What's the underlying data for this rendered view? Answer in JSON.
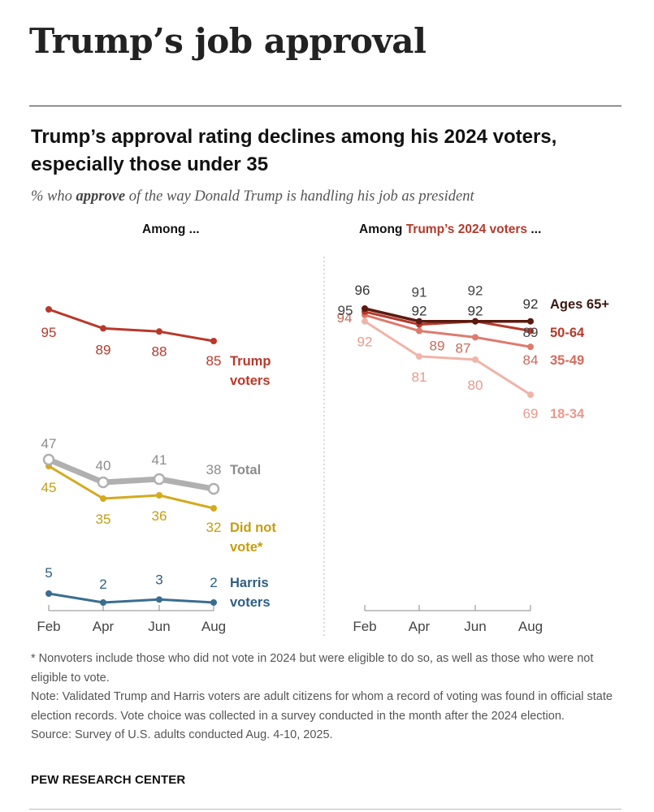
{
  "page": {
    "heading": "Trump’s job approval"
  },
  "chart_data": {
    "type": "line",
    "title": "Trump’s approval rating declines among his 2024 voters, especially those under 35",
    "subtitle_prefix": "% who ",
    "subtitle_emphasis": "approve",
    "subtitle_suffix": " of the way Donald Trump is handling his job as president",
    "categories": [
      "Feb",
      "Apr",
      "Jun",
      "Aug"
    ],
    "panels": [
      {
        "heading": "Among ...",
        "heading_accent": "",
        "ylim": [
          0,
          100
        ],
        "series": [
          {
            "key": "trump",
            "name": "Trump voters",
            "label_lines": [
              "Trump",
              "voters"
            ],
            "values": [
              95,
              89,
              88,
              85
            ],
            "color": "#b8392b",
            "stroke_width": 3,
            "marker": "filled"
          },
          {
            "key": "total",
            "name": "Total",
            "label_lines": [
              "Total"
            ],
            "values": [
              47,
              40,
              41,
              38
            ],
            "color": "#b0b0b0",
            "value_color": "#8c8c8c",
            "stroke_width": 7,
            "marker": "hollow"
          },
          {
            "key": "didnot",
            "name": "Did not vote*",
            "label_lines": [
              "Did not",
              "vote*"
            ],
            "values": [
              45,
              35,
              36,
              32
            ],
            "color": "#d4aa1e",
            "value_color": "#c59d10",
            "stroke_width": 3,
            "marker": "filled"
          },
          {
            "key": "harris",
            "name": "Harris voters",
            "label_lines": [
              "Harris",
              "voters"
            ],
            "values": [
              5,
              2,
              3,
              2
            ],
            "color": "#3a6e8f",
            "value_color": "#2f5f80",
            "stroke_width": 3,
            "marker": "filled"
          }
        ]
      },
      {
        "heading": "Among ",
        "heading_accent": "Trump’s 2024 voters",
        "heading_suffix": " ...",
        "ylim": [
          0,
          100
        ],
        "series": [
          {
            "key": "a65",
            "name": "Ages 65+",
            "label_lines": [
              "Ages 65+"
            ],
            "values": [
              96,
              92,
              92,
              92
            ],
            "color": "#5a1a10",
            "value_color": "#333333",
            "label_color": "#3a1a12",
            "stroke_width": 3.5,
            "marker": "filled"
          },
          {
            "key": "a50",
            "name": "50-64",
            "label_lines": [
              "50-64"
            ],
            "values": [
              95,
              91,
              92,
              89
            ],
            "color": "#b8392b",
            "value_color": "#444444",
            "label_color": "#b8392b",
            "stroke_width": 3,
            "marker": "filled"
          },
          {
            "key": "a35",
            "name": "35-49",
            "label_lines": [
              "35-49"
            ],
            "values": [
              94,
              89,
              87,
              84
            ],
            "color": "#dd7b6d",
            "value_color": "#c8695b",
            "label_color": "#d46a5b",
            "stroke_width": 3,
            "marker": "filled"
          },
          {
            "key": "a18",
            "name": "18-34",
            "label_lines": [
              "18-34"
            ],
            "values": [
              92,
              81,
              80,
              69
            ],
            "color": "#f0b4a8",
            "value_color": "#e79a8c",
            "label_color": "#e89a8c",
            "stroke_width": 3,
            "marker": "filled"
          }
        ]
      }
    ]
  },
  "notes": {
    "nonvoters": "* Nonvoters include those who did not vote in 2024 but were eligible to do so, as well as those who were not eligible to vote.",
    "note": "Note: Validated Trump and Harris voters are adult citizens for whom a record of voting was found in official state election records. Vote choice was collected in a survey conducted in the month after the 2024 election.",
    "source": "Source: Survey of U.S. adults conducted Aug. 4-10, 2025."
  },
  "brand": "PEW RESEARCH CENTER"
}
